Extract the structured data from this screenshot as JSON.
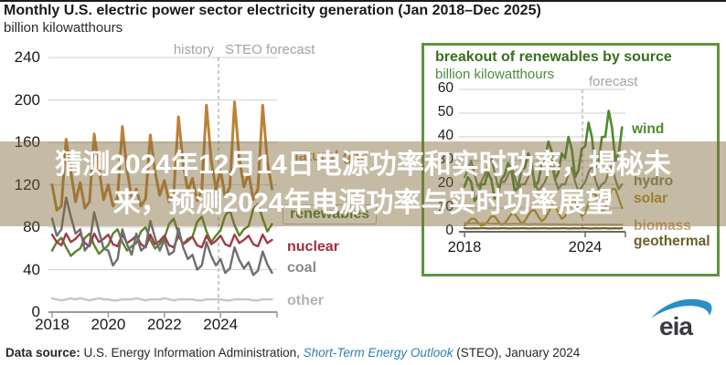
{
  "title": {
    "text": "Monthly U.S. electric power sector electricity generation (Jan 2018–Dec 2025)",
    "subtitle": "billion kilowatthours"
  },
  "overlay": {
    "line1": "猜测2024年12月14日电源功率和实时功率，揭秘未",
    "line2": "来，预测2024年电源功率与实时功率展望",
    "tint": "rgba(127,104,56,0.45)",
    "text_color": "#ffffff"
  },
  "footer": {
    "label": "Data source:",
    "text_mid": " U.S. Energy Information Administration, ",
    "link": "Short-Term Energy Outlook",
    "text_end": " (STEO), January 2024"
  },
  "logo": {
    "text": "eia",
    "swoosh_color": "#2a8fc7",
    "text_color": "#3a3a40"
  },
  "chart_data": [
    {
      "type": "line",
      "title": "Monthly U.S. electric power sector electricity generation (Jan 2018–Dec 2025)",
      "ylabel": "billion kilowatthours",
      "ylim": [
        0,
        240
      ],
      "yticks": [
        0,
        40,
        80,
        120,
        160,
        200,
        240
      ],
      "xlim": [
        2018,
        2026
      ],
      "xticks": [
        2018,
        2020,
        2022,
        2024
      ],
      "sample_months": "Jan, Mar, May, Jul, Sep, Nov of each year 2018-2025",
      "forecast_boundary_year": 2023.92,
      "annotations": {
        "history": "history",
        "forecast": "STEO forecast"
      },
      "grid": true,
      "legend_position": "right-of-lines",
      "series": [
        {
          "name": "natural gas",
          "color": "#bd8138",
          "label_color": "#c08a45",
          "values": [
            120,
            96,
            100,
            163,
            132,
            104,
            122,
            98,
            104,
            168,
            135,
            106,
            120,
            100,
            108,
            175,
            134,
            108,
            116,
            100,
            107,
            167,
            132,
            110,
            124,
            104,
            112,
            184,
            140,
            114,
            126,
            105,
            115,
            195,
            143,
            116,
            134,
            108,
            118,
            198,
            145,
            118,
            131,
            106,
            116,
            195,
            142,
            116
          ]
        },
        {
          "name": "renewables",
          "color": "#5c8427",
          "label_color": "#4c7f22",
          "values": [
            58,
            66,
            70,
            61,
            53,
            57,
            60,
            70,
            74,
            63,
            55,
            59,
            63,
            74,
            78,
            66,
            58,
            62,
            65,
            76,
            80,
            68,
            60,
            64,
            70,
            83,
            88,
            74,
            64,
            69,
            71,
            85,
            90,
            76,
            66,
            72,
            77,
            91,
            96,
            82,
            72,
            78,
            81,
            97,
            102,
            88,
            76,
            83
          ]
        },
        {
          "name": "nuclear",
          "color": "#a03c4a",
          "label_color": "#9c2f3f",
          "values": [
            73,
            66,
            63,
            74,
            66,
            69,
            74,
            65,
            62,
            74,
            66,
            69,
            73,
            64,
            62,
            73,
            65,
            68,
            72,
            64,
            61,
            73,
            64,
            67,
            72,
            63,
            61,
            72,
            64,
            67,
            71,
            63,
            61,
            72,
            64,
            67,
            72,
            64,
            62,
            73,
            65,
            68,
            72,
            64,
            62,
            73,
            65,
            68
          ]
        },
        {
          "name": "coal",
          "color": "#6e6e6e",
          "label_color": "#8a8a8a",
          "values": [
            88,
            72,
            78,
            108,
            90,
            74,
            78,
            58,
            64,
            94,
            76,
            60,
            58,
            44,
            50,
            78,
            64,
            54,
            74,
            58,
            62,
            86,
            70,
            58,
            68,
            54,
            57,
            79,
            61,
            50,
            54,
            40,
            44,
            66,
            53,
            44,
            50,
            37,
            41,
            61,
            49,
            41,
            47,
            35,
            39,
            57,
            45,
            37
          ]
        },
        {
          "name": "other",
          "color": "#c6c6c6",
          "label_color": "#b3b3b3",
          "values": [
            13,
            12,
            11,
            12,
            13,
            12,
            13,
            12,
            11,
            12,
            13,
            12,
            12,
            11,
            11,
            12,
            12,
            12,
            13,
            12,
            11,
            12,
            12,
            12,
            13,
            12,
            11,
            12,
            12,
            12,
            12,
            11,
            11,
            12,
            12,
            12,
            12,
            11,
            11,
            12,
            12,
            12,
            12,
            11,
            11,
            12,
            12,
            12
          ]
        }
      ]
    },
    {
      "type": "line",
      "title": "breakout of renewables by source",
      "ylabel": "billion kilowatthours",
      "ylim": [
        0,
        60
      ],
      "yticks": [
        0,
        10,
        20,
        30,
        40,
        50,
        60
      ],
      "xlim": [
        2018,
        2026
      ],
      "xticks": [
        2018,
        2024
      ],
      "sample_months": "Jan, Mar, May, Jul, Sep, Nov of each year 2018-2025",
      "forecast_boundary_year": 2023.92,
      "annotations": {
        "forecast": "forecast"
      },
      "grid": true,
      "legend_position": "right-of-lines",
      "series": [
        {
          "name": "wind",
          "color": "#4e8a2e",
          "label_color": "#4b8a2b",
          "values": [
            19,
            23,
            21,
            13,
            15,
            20,
            20,
            25,
            22,
            14,
            16,
            22,
            24,
            29,
            26,
            17,
            19,
            26,
            27,
            33,
            29,
            19,
            21,
            28,
            30,
            38,
            34,
            22,
            25,
            33,
            31,
            40,
            35,
            23,
            26,
            35,
            36,
            46,
            40,
            27,
            30,
            40,
            40,
            51,
            44,
            30,
            33,
            44
          ]
        },
        {
          "name": "hydro",
          "color": "#7e8a57",
          "label_color": "#7e8a57",
          "values": [
            23,
            26,
            30,
            24,
            19,
            21,
            24,
            28,
            31,
            25,
            19,
            21,
            21,
            24,
            28,
            23,
            18,
            20,
            20,
            23,
            26,
            21,
            17,
            19,
            21,
            25,
            28,
            22,
            18,
            20,
            20,
            24,
            27,
            21,
            17,
            19,
            21,
            25,
            28,
            22,
            18,
            20,
            21,
            25,
            28,
            22,
            18,
            20
          ]
        },
        {
          "name": "solar",
          "color": "#b2941f",
          "label_color": "#b2941f",
          "values": [
            2.5,
            4,
            5.5,
            5.5,
            4,
            2.5,
            3,
            4.5,
            6.5,
            6.5,
            4.5,
            3,
            3.5,
            5.5,
            7.5,
            7.5,
            5.5,
            3.5,
            4.5,
            7,
            9,
            9,
            6.5,
            4.5,
            5.5,
            8,
            11,
            11,
            8,
            5.5,
            6.5,
            10,
            13,
            13,
            9.5,
            6.5,
            8,
            12,
            16,
            16,
            12,
            8,
            10,
            14,
            18,
            18,
            14,
            10
          ]
        },
        {
          "name": "biomass",
          "color": "#c8a176",
          "label_color": "#c8a176",
          "values": [
            3.6,
            3.5,
            3.5,
            3.6,
            3.5,
            3.5,
            3.6,
            3.5,
            3.4,
            3.5,
            3.4,
            3.4,
            3.4,
            3.3,
            3.3,
            3.4,
            3.3,
            3.3,
            3.3,
            3.2,
            3.2,
            3.3,
            3.2,
            3.2,
            3.2,
            3.1,
            3.1,
            3.2,
            3.1,
            3.1,
            3.1,
            3.0,
            3.0,
            3.1,
            3.0,
            3.0,
            3.0,
            3.0,
            3.0,
            3.0,
            3.0,
            3.0,
            3.0,
            3.0,
            3.0,
            3.0,
            3.0,
            3.0
          ]
        },
        {
          "name": "geothermal",
          "color": "#6e5d25",
          "label_color": "#6e5d25",
          "values": [
            1.5,
            1.4,
            1.4,
            1.5,
            1.4,
            1.5,
            1.5,
            1.4,
            1.4,
            1.5,
            1.4,
            1.5,
            1.5,
            1.4,
            1.4,
            1.5,
            1.4,
            1.5,
            1.5,
            1.4,
            1.4,
            1.5,
            1.4,
            1.5,
            1.5,
            1.4,
            1.4,
            1.5,
            1.4,
            1.5,
            1.5,
            1.4,
            1.4,
            1.5,
            1.4,
            1.5,
            1.5,
            1.4,
            1.4,
            1.5,
            1.4,
            1.5,
            1.5,
            1.4,
            1.4,
            1.5,
            1.4,
            1.5
          ]
        }
      ]
    }
  ]
}
